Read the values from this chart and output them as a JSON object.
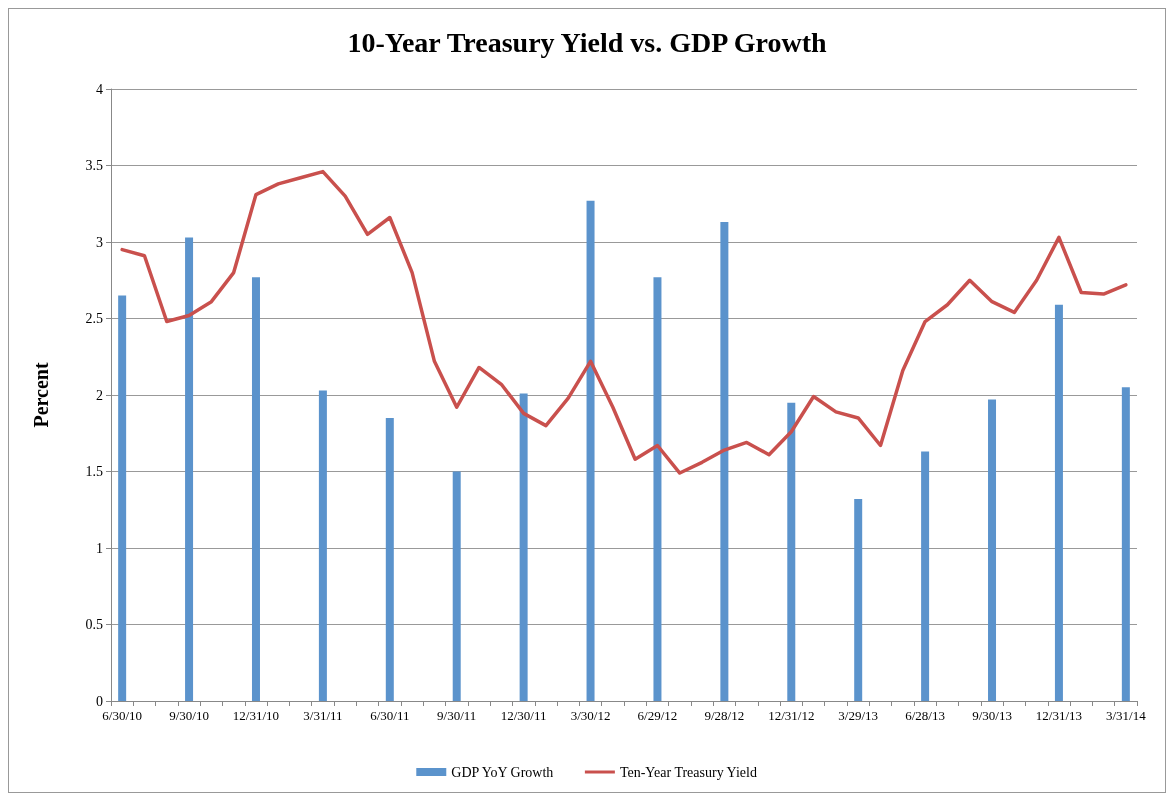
{
  "chart_data": {
    "type": "bar",
    "title": "10-Year Treasury Yield vs. GDP Growth",
    "ylabel": "Percent",
    "categories": [
      "6/30/10",
      null,
      null,
      "9/30/10",
      null,
      null,
      "12/31/10",
      null,
      null,
      "3/31/11",
      null,
      null,
      "6/30/11",
      null,
      null,
      "9/30/11",
      null,
      null,
      "12/30/11",
      null,
      null,
      "3/30/12",
      null,
      null,
      "6/29/12",
      null,
      null,
      "9/28/12",
      null,
      null,
      "12/31/12",
      null,
      null,
      "3/29/13",
      null,
      null,
      "6/28/13",
      null,
      null,
      "9/30/13",
      null,
      null,
      "12/31/13",
      null,
      null,
      "3/31/14"
    ],
    "series": [
      {
        "name": "GDP YoY Growth",
        "color": "#5b93cc",
        "values": [
          2.65,
          null,
          null,
          3.03,
          null,
          null,
          2.77,
          null,
          null,
          2.03,
          null,
          null,
          1.85,
          null,
          null,
          1.5,
          null,
          null,
          2.01,
          null,
          null,
          3.27,
          null,
          null,
          2.77,
          null,
          null,
          3.13,
          null,
          null,
          1.95,
          null,
          null,
          1.32,
          null,
          null,
          1.63,
          null,
          null,
          1.97,
          null,
          null,
          2.59,
          null,
          null,
          2.05
        ]
      },
      {
        "name": "Ten-Year Treasury Yield",
        "type": "line",
        "color": "#c9504d",
        "values": [
          2.95,
          2.91,
          2.48,
          2.52,
          2.61,
          2.8,
          3.31,
          3.38,
          3.42,
          3.46,
          3.3,
          3.05,
          3.16,
          2.8,
          2.22,
          1.92,
          2.18,
          2.07,
          1.88,
          1.8,
          1.98,
          2.22,
          1.92,
          1.58,
          1.67,
          1.49,
          1.56,
          1.64,
          1.69,
          1.61,
          1.76,
          1.99,
          1.89,
          1.85,
          1.67,
          2.16,
          2.48,
          2.59,
          2.75,
          2.61,
          2.54,
          2.75,
          3.03,
          2.67,
          2.66,
          2.72
        ]
      }
    ],
    "ylim": [
      0,
      4
    ],
    "yticks": [
      0,
      0.5,
      1,
      1.5,
      2,
      2.5,
      3,
      3.5,
      4
    ],
    "grid": "y",
    "legend": "bottom",
    "marker": "none",
    "line_style": "solid"
  }
}
